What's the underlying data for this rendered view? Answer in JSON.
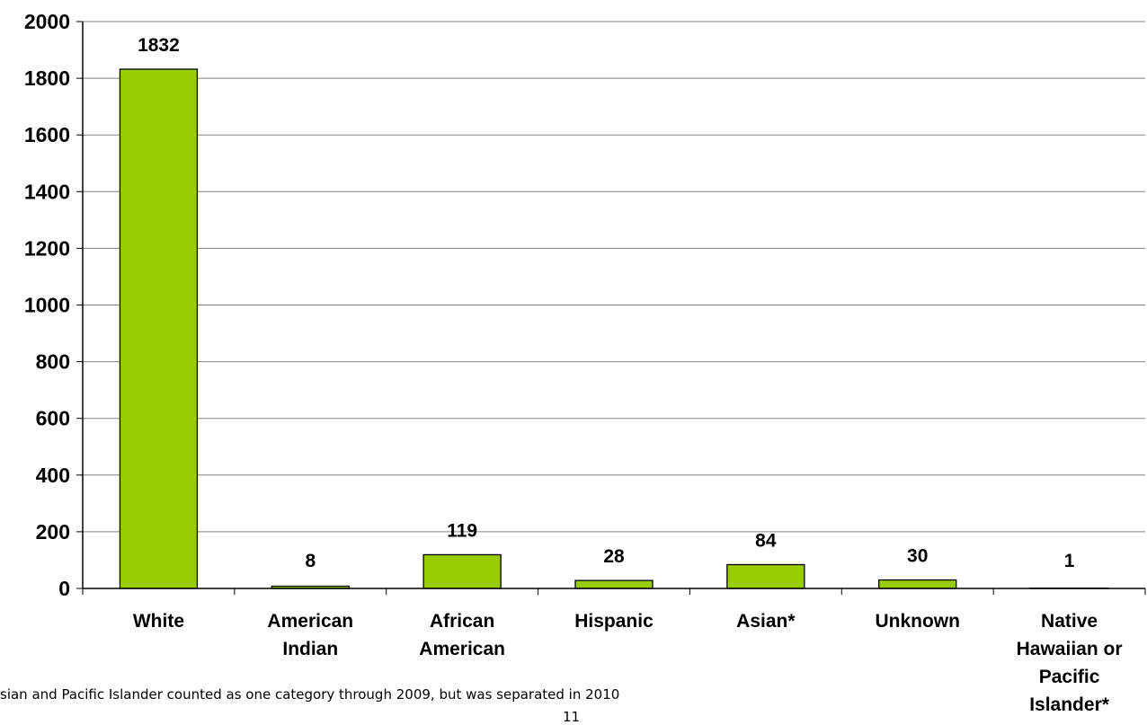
{
  "chart_data": {
    "type": "bar",
    "categories": [
      [
        "White"
      ],
      [
        "American",
        "Indian"
      ],
      [
        "African",
        "American"
      ],
      [
        "Hispanic"
      ],
      [
        "Asian*"
      ],
      [
        "Unknown"
      ],
      [
        "Native",
        "Hawaiian or",
        "Pacific",
        "Islander*"
      ]
    ],
    "values": [
      1832,
      8,
      119,
      28,
      84,
      30,
      1
    ],
    "data_labels": [
      "1832",
      "8",
      "119",
      "28",
      "84",
      "30",
      "1"
    ],
    "ylim": [
      0,
      2000
    ],
    "yticks": [
      0,
      200,
      400,
      600,
      800,
      1000,
      1200,
      1400,
      1600,
      1800,
      2000
    ],
    "grid": true,
    "bar_color": "#99cc00",
    "bar_border_color": "#000000",
    "grid_color": "#808080",
    "title": "",
    "xlabel": "",
    "ylabel": ""
  },
  "footnote": "sian and Pacific Islander counted as one category through 2009, but was separated in 2010",
  "page_number": "11"
}
